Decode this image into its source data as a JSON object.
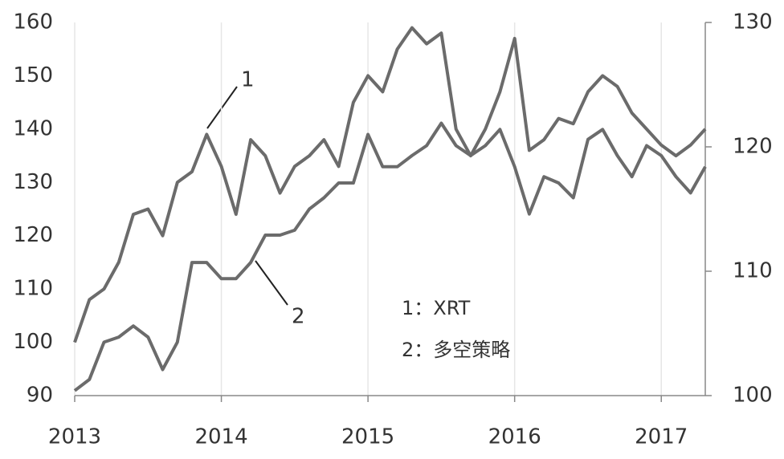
{
  "chart_data": {
    "type": "line",
    "xlim": [
      2013,
      2017.3
    ],
    "xticks": [
      2013,
      2014,
      2015,
      2016,
      2017
    ],
    "ylim": [
      90,
      160
    ],
    "yticks": [
      90,
      100,
      110,
      120,
      130,
      140,
      150,
      160
    ],
    "y2lim": [
      100,
      130
    ],
    "y2ticks": [
      100,
      110,
      120,
      130
    ],
    "grid": true,
    "annotations": [
      "1",
      "2"
    ],
    "x": [
      2013.0,
      2013.1,
      2013.2,
      2013.3,
      2013.4,
      2013.5,
      2013.6,
      2013.7,
      2013.8,
      2013.9,
      2014.0,
      2014.1,
      2014.2,
      2014.3,
      2014.4,
      2014.5,
      2014.6,
      2014.7,
      2014.8,
      2014.9,
      2015.0,
      2015.1,
      2015.2,
      2015.3,
      2015.4,
      2015.5,
      2015.6,
      2015.7,
      2015.8,
      2015.9,
      2016.0,
      2016.1,
      2016.2,
      2016.3,
      2016.4,
      2016.5,
      2016.6,
      2016.7,
      2016.8,
      2016.9,
      2017.0,
      2017.1,
      2017.2,
      2017.3
    ],
    "series": [
      {
        "name": "1：XRT",
        "color": "#6b6b6b",
        "values": [
          100,
          108,
          110,
          115,
          124,
          125,
          120,
          130,
          132,
          139,
          133,
          124,
          138,
          135,
          128,
          133,
          135,
          138,
          133,
          145,
          150,
          147,
          155,
          159,
          156,
          158,
          140,
          135,
          140,
          147,
          157,
          136,
          138,
          142,
          141,
          147,
          150,
          148,
          143,
          140,
          137,
          135,
          137,
          140
        ]
      },
      {
        "name": "2：多空策略",
        "color": "#6b6b6b",
        "axis": "y2",
        "values": [
          100.4,
          101.3,
          104.3,
          104.7,
          105.6,
          104.7,
          102.1,
          104.3,
          110.7,
          110.7,
          109.4,
          109.4,
          110.7,
          112.9,
          112.9,
          113.3,
          115,
          115.9,
          117.1,
          117.1,
          121,
          118.4,
          118.4,
          119.3,
          120.1,
          121.9,
          120.1,
          119.3,
          120.1,
          121.4,
          118.4,
          114.6,
          117.6,
          117.1,
          115.9,
          120.6,
          121.4,
          119.3,
          117.6,
          120.1,
          119.3,
          117.6,
          116.3,
          118.4
        ]
      }
    ]
  }
}
